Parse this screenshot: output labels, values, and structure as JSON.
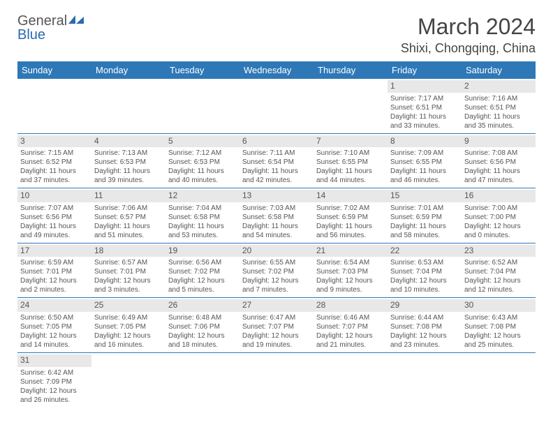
{
  "logo": {
    "text1": "General",
    "text2": "Blue"
  },
  "title": "March 2024",
  "location": "Shixi, Chongqing, China",
  "headers": [
    "Sunday",
    "Monday",
    "Tuesday",
    "Wednesday",
    "Thursday",
    "Friday",
    "Saturday"
  ],
  "colors": {
    "headerBg": "#2e78b7",
    "headerText": "#ffffff",
    "dayNumBg": "#e8e8e8",
    "borderColor": "#2e78b7",
    "logoBlue": "#2a6ab0"
  },
  "startOffset": 5,
  "days": [
    {
      "n": "1",
      "sunrise": "Sunrise: 7:17 AM",
      "sunset": "Sunset: 6:51 PM",
      "daylight": "Daylight: 11 hours and 33 minutes."
    },
    {
      "n": "2",
      "sunrise": "Sunrise: 7:16 AM",
      "sunset": "Sunset: 6:51 PM",
      "daylight": "Daylight: 11 hours and 35 minutes."
    },
    {
      "n": "3",
      "sunrise": "Sunrise: 7:15 AM",
      "sunset": "Sunset: 6:52 PM",
      "daylight": "Daylight: 11 hours and 37 minutes."
    },
    {
      "n": "4",
      "sunrise": "Sunrise: 7:13 AM",
      "sunset": "Sunset: 6:53 PM",
      "daylight": "Daylight: 11 hours and 39 minutes."
    },
    {
      "n": "5",
      "sunrise": "Sunrise: 7:12 AM",
      "sunset": "Sunset: 6:53 PM",
      "daylight": "Daylight: 11 hours and 40 minutes."
    },
    {
      "n": "6",
      "sunrise": "Sunrise: 7:11 AM",
      "sunset": "Sunset: 6:54 PM",
      "daylight": "Daylight: 11 hours and 42 minutes."
    },
    {
      "n": "7",
      "sunrise": "Sunrise: 7:10 AM",
      "sunset": "Sunset: 6:55 PM",
      "daylight": "Daylight: 11 hours and 44 minutes."
    },
    {
      "n": "8",
      "sunrise": "Sunrise: 7:09 AM",
      "sunset": "Sunset: 6:55 PM",
      "daylight": "Daylight: 11 hours and 46 minutes."
    },
    {
      "n": "9",
      "sunrise": "Sunrise: 7:08 AM",
      "sunset": "Sunset: 6:56 PM",
      "daylight": "Daylight: 11 hours and 47 minutes."
    },
    {
      "n": "10",
      "sunrise": "Sunrise: 7:07 AM",
      "sunset": "Sunset: 6:56 PM",
      "daylight": "Daylight: 11 hours and 49 minutes."
    },
    {
      "n": "11",
      "sunrise": "Sunrise: 7:06 AM",
      "sunset": "Sunset: 6:57 PM",
      "daylight": "Daylight: 11 hours and 51 minutes."
    },
    {
      "n": "12",
      "sunrise": "Sunrise: 7:04 AM",
      "sunset": "Sunset: 6:58 PM",
      "daylight": "Daylight: 11 hours and 53 minutes."
    },
    {
      "n": "13",
      "sunrise": "Sunrise: 7:03 AM",
      "sunset": "Sunset: 6:58 PM",
      "daylight": "Daylight: 11 hours and 54 minutes."
    },
    {
      "n": "14",
      "sunrise": "Sunrise: 7:02 AM",
      "sunset": "Sunset: 6:59 PM",
      "daylight": "Daylight: 11 hours and 56 minutes."
    },
    {
      "n": "15",
      "sunrise": "Sunrise: 7:01 AM",
      "sunset": "Sunset: 6:59 PM",
      "daylight": "Daylight: 11 hours and 58 minutes."
    },
    {
      "n": "16",
      "sunrise": "Sunrise: 7:00 AM",
      "sunset": "Sunset: 7:00 PM",
      "daylight": "Daylight: 12 hours and 0 minutes."
    },
    {
      "n": "17",
      "sunrise": "Sunrise: 6:59 AM",
      "sunset": "Sunset: 7:01 PM",
      "daylight": "Daylight: 12 hours and 2 minutes."
    },
    {
      "n": "18",
      "sunrise": "Sunrise: 6:57 AM",
      "sunset": "Sunset: 7:01 PM",
      "daylight": "Daylight: 12 hours and 3 minutes."
    },
    {
      "n": "19",
      "sunrise": "Sunrise: 6:56 AM",
      "sunset": "Sunset: 7:02 PM",
      "daylight": "Daylight: 12 hours and 5 minutes."
    },
    {
      "n": "20",
      "sunrise": "Sunrise: 6:55 AM",
      "sunset": "Sunset: 7:02 PM",
      "daylight": "Daylight: 12 hours and 7 minutes."
    },
    {
      "n": "21",
      "sunrise": "Sunrise: 6:54 AM",
      "sunset": "Sunset: 7:03 PM",
      "daylight": "Daylight: 12 hours and 9 minutes."
    },
    {
      "n": "22",
      "sunrise": "Sunrise: 6:53 AM",
      "sunset": "Sunset: 7:04 PM",
      "daylight": "Daylight: 12 hours and 10 minutes."
    },
    {
      "n": "23",
      "sunrise": "Sunrise: 6:52 AM",
      "sunset": "Sunset: 7:04 PM",
      "daylight": "Daylight: 12 hours and 12 minutes."
    },
    {
      "n": "24",
      "sunrise": "Sunrise: 6:50 AM",
      "sunset": "Sunset: 7:05 PM",
      "daylight": "Daylight: 12 hours and 14 minutes."
    },
    {
      "n": "25",
      "sunrise": "Sunrise: 6:49 AM",
      "sunset": "Sunset: 7:05 PM",
      "daylight": "Daylight: 12 hours and 16 minutes."
    },
    {
      "n": "26",
      "sunrise": "Sunrise: 6:48 AM",
      "sunset": "Sunset: 7:06 PM",
      "daylight": "Daylight: 12 hours and 18 minutes."
    },
    {
      "n": "27",
      "sunrise": "Sunrise: 6:47 AM",
      "sunset": "Sunset: 7:07 PM",
      "daylight": "Daylight: 12 hours and 19 minutes."
    },
    {
      "n": "28",
      "sunrise": "Sunrise: 6:46 AM",
      "sunset": "Sunset: 7:07 PM",
      "daylight": "Daylight: 12 hours and 21 minutes."
    },
    {
      "n": "29",
      "sunrise": "Sunrise: 6:44 AM",
      "sunset": "Sunset: 7:08 PM",
      "daylight": "Daylight: 12 hours and 23 minutes."
    },
    {
      "n": "30",
      "sunrise": "Sunrise: 6:43 AM",
      "sunset": "Sunset: 7:08 PM",
      "daylight": "Daylight: 12 hours and 25 minutes."
    },
    {
      "n": "31",
      "sunrise": "Sunrise: 6:42 AM",
      "sunset": "Sunset: 7:09 PM",
      "daylight": "Daylight: 12 hours and 26 minutes."
    }
  ]
}
